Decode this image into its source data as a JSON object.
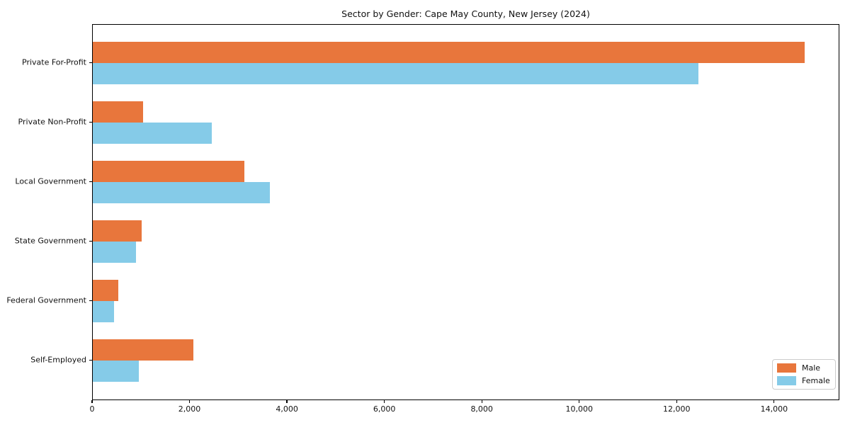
{
  "chart_data": {
    "type": "bar",
    "orientation": "horizontal",
    "title": "Sector by Gender: Cape May County, New Jersey (2024)",
    "xlabel": "",
    "ylabel": "",
    "categories": [
      "Private For-Profit",
      "Private Non-Profit",
      "Local Government",
      "State Government",
      "Federal Government",
      "Self-Employed"
    ],
    "series": [
      {
        "name": "Male",
        "color": "#e8763c",
        "values": [
          14610,
          1030,
          3110,
          1000,
          520,
          2060
        ]
      },
      {
        "name": "Female",
        "color": "#85cbe8",
        "values": [
          12430,
          2440,
          3630,
          880,
          440,
          950
        ]
      }
    ],
    "xlim": [
      0,
      15340
    ],
    "x_ticks": [
      0,
      2000,
      4000,
      6000,
      8000,
      10000,
      12000,
      14000
    ],
    "x_tick_labels": [
      "0",
      "2,000",
      "4,000",
      "6,000",
      "8,000",
      "10,000",
      "12,000",
      "14,000"
    ],
    "legend_position": "lower right",
    "grid": false
  }
}
